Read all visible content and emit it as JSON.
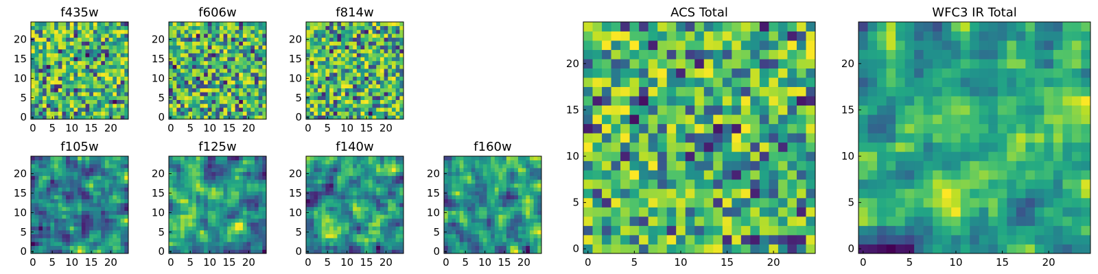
{
  "figure": {
    "background": "#ffffff",
    "colormap": "viridis"
  },
  "chart_data": [
    {
      "type": "heatmap",
      "title": "f435w",
      "grid_size": 25,
      "xticks": [
        "0",
        "5",
        "10",
        "15",
        "20"
      ],
      "yticks": [
        "0",
        "5",
        "10",
        "15",
        "20"
      ],
      "xlim": [
        0,
        25
      ],
      "ylim": [
        0,
        25
      ],
      "value_range": [
        0,
        1
      ],
      "smoothing": 0,
      "seed": 11
    },
    {
      "type": "heatmap",
      "title": "f606w",
      "grid_size": 25,
      "xticks": [
        "0",
        "5",
        "10",
        "15",
        "20"
      ],
      "yticks": [
        "0",
        "5",
        "10",
        "15",
        "20"
      ],
      "xlim": [
        0,
        25
      ],
      "ylim": [
        0,
        25
      ],
      "value_range": [
        0,
        1
      ],
      "smoothing": 0,
      "seed": 23
    },
    {
      "type": "heatmap",
      "title": "f814w",
      "grid_size": 25,
      "xticks": [
        "0",
        "5",
        "10",
        "15",
        "20"
      ],
      "yticks": [
        "0",
        "5",
        "10",
        "15",
        "20"
      ],
      "xlim": [
        0,
        25
      ],
      "ylim": [
        0,
        25
      ],
      "value_range": [
        0,
        1
      ],
      "smoothing": 0,
      "seed": 37
    },
    {
      "type": "heatmap",
      "title": "f105w",
      "grid_size": 25,
      "xticks": [
        "0",
        "5",
        "10",
        "15",
        "20"
      ],
      "yticks": [
        "0",
        "5",
        "10",
        "15",
        "20"
      ],
      "xlim": [
        0,
        25
      ],
      "ylim": [
        0,
        25
      ],
      "value_range": [
        0,
        1
      ],
      "smoothing": 1,
      "seed": 41
    },
    {
      "type": "heatmap",
      "title": "f125w",
      "grid_size": 25,
      "xticks": [
        "0",
        "5",
        "10",
        "15",
        "20"
      ],
      "yticks": [
        "0",
        "5",
        "10",
        "15",
        "20"
      ],
      "xlim": [
        0,
        25
      ],
      "ylim": [
        0,
        25
      ],
      "value_range": [
        0,
        1
      ],
      "smoothing": 1,
      "seed": 53
    },
    {
      "type": "heatmap",
      "title": "f140w",
      "grid_size": 25,
      "xticks": [
        "0",
        "5",
        "10",
        "15",
        "20"
      ],
      "yticks": [
        "0",
        "5",
        "10",
        "15",
        "20"
      ],
      "xlim": [
        0,
        25
      ],
      "ylim": [
        0,
        25
      ],
      "value_range": [
        0,
        1
      ],
      "smoothing": 1,
      "seed": 67
    },
    {
      "type": "heatmap",
      "title": "f160w",
      "grid_size": 25,
      "xticks": [
        "0",
        "5",
        "10",
        "15",
        "20"
      ],
      "yticks": [
        "0",
        "5",
        "10",
        "15",
        "20"
      ],
      "xlim": [
        0,
        25
      ],
      "ylim": [
        0,
        25
      ],
      "value_range": [
        0,
        1
      ],
      "smoothing": 1,
      "seed": 79
    },
    {
      "type": "heatmap",
      "title": "ACS Total",
      "grid_size": 25,
      "xticks": [
        "0",
        "5",
        "10",
        "15",
        "20"
      ],
      "yticks": [
        "0",
        "5",
        "10",
        "15",
        "20"
      ],
      "xlim": [
        0,
        25
      ],
      "ylim": [
        0,
        25
      ],
      "value_range": [
        0,
        1
      ],
      "smoothing": 0,
      "seed": 83
    },
    {
      "type": "heatmap",
      "title": "WFC3 IR Total",
      "grid_size": 25,
      "xticks": [
        "0",
        "5",
        "10",
        "15",
        "20"
      ],
      "yticks": [
        "0",
        "5",
        "10",
        "15",
        "20"
      ],
      "xlim": [
        0,
        25
      ],
      "ylim": [
        0,
        25
      ],
      "value_range": [
        0,
        1
      ],
      "smoothing": 1,
      "seed": 97
    }
  ]
}
